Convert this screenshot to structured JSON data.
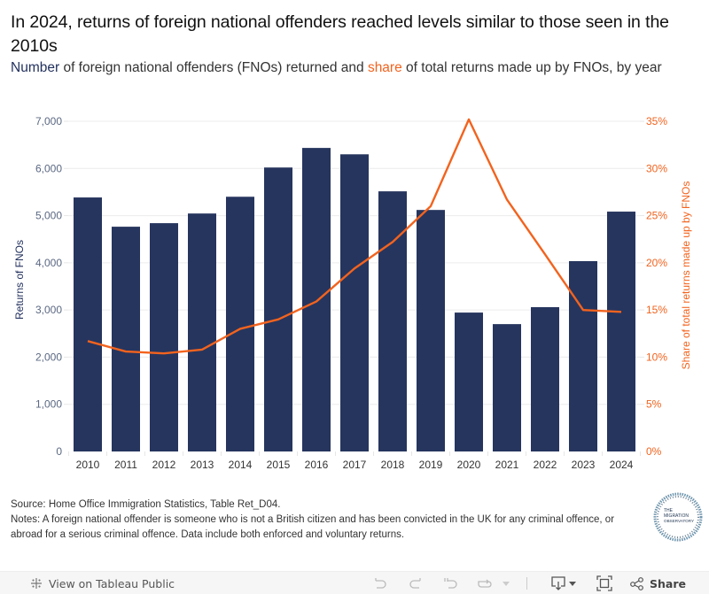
{
  "header": {
    "title": "In 2024, returns of foreign national offenders reached levels similar to those seen in the 2010s",
    "subtitle_number": "Number",
    "subtitle_mid": " of foreign national offenders (FNOs) returned and ",
    "subtitle_share": "share",
    "subtitle_end": " of total returns made up by FNOs, by year"
  },
  "colors": {
    "bars": "#26355e",
    "line": "#f2631e",
    "left_axis_text": "#5b6882",
    "gridline": "#ececec"
  },
  "chart_data": {
    "type": "bar+line",
    "title": "In 2024, returns of foreign national offenders reached levels similar to those seen in the 2010s",
    "categories": [
      "2010",
      "2011",
      "2012",
      "2013",
      "2014",
      "2015",
      "2016",
      "2017",
      "2018",
      "2019",
      "2020",
      "2021",
      "2022",
      "2023",
      "2024"
    ],
    "series": [
      {
        "name": "Returns of FNOs",
        "type": "bar",
        "axis": "left",
        "values": [
          5385,
          4765,
          4840,
          5045,
          5400,
          6020,
          6435,
          6300,
          5515,
          5120,
          2945,
          2700,
          3060,
          4035,
          5085
        ]
      },
      {
        "name": "Share of total returns made up by FNOs",
        "type": "line",
        "axis": "right",
        "values": [
          11.7,
          10.6,
          10.4,
          10.8,
          13.0,
          14.0,
          15.9,
          19.4,
          22.2,
          26.0,
          35.2,
          26.7,
          20.9,
          15.0,
          14.8
        ]
      }
    ],
    "xlabel": "",
    "ylabel": "Returns of FNOs",
    "ylabel_right": "Share of total returns made up by FNOs",
    "ylim": [
      0,
      7000
    ],
    "ylim_right": [
      0,
      35
    ],
    "yticks": [
      "0",
      "1,000",
      "2,000",
      "3,000",
      "4,000",
      "5,000",
      "6,000",
      "7,000"
    ],
    "yticks_right": [
      "0%",
      "5%",
      "10%",
      "15%",
      "20%",
      "25%",
      "30%",
      "35%"
    ],
    "grid": true,
    "legend": "none"
  },
  "footer": {
    "source": "Source: Home Office Immigration Statistics, Table Ret_D04.",
    "notes": "Notes: A foreign national offender is someone who is not a British citizen and has been convicted in the UK for any criminal offence, or abroad for a serious criminal offence. Data include both enforced and voluntary returns.",
    "logo_text": [
      "THE",
      "MIGRATION",
      "OBSERVATORY"
    ]
  },
  "toolbar": {
    "view_on_tableau": "View on Tableau Public",
    "share": "Share",
    "icons": [
      "undo-icon",
      "redo-icon",
      "revert-icon",
      "pause-icon",
      "download-icon",
      "fullscreen-icon",
      "share-icon"
    ]
  }
}
